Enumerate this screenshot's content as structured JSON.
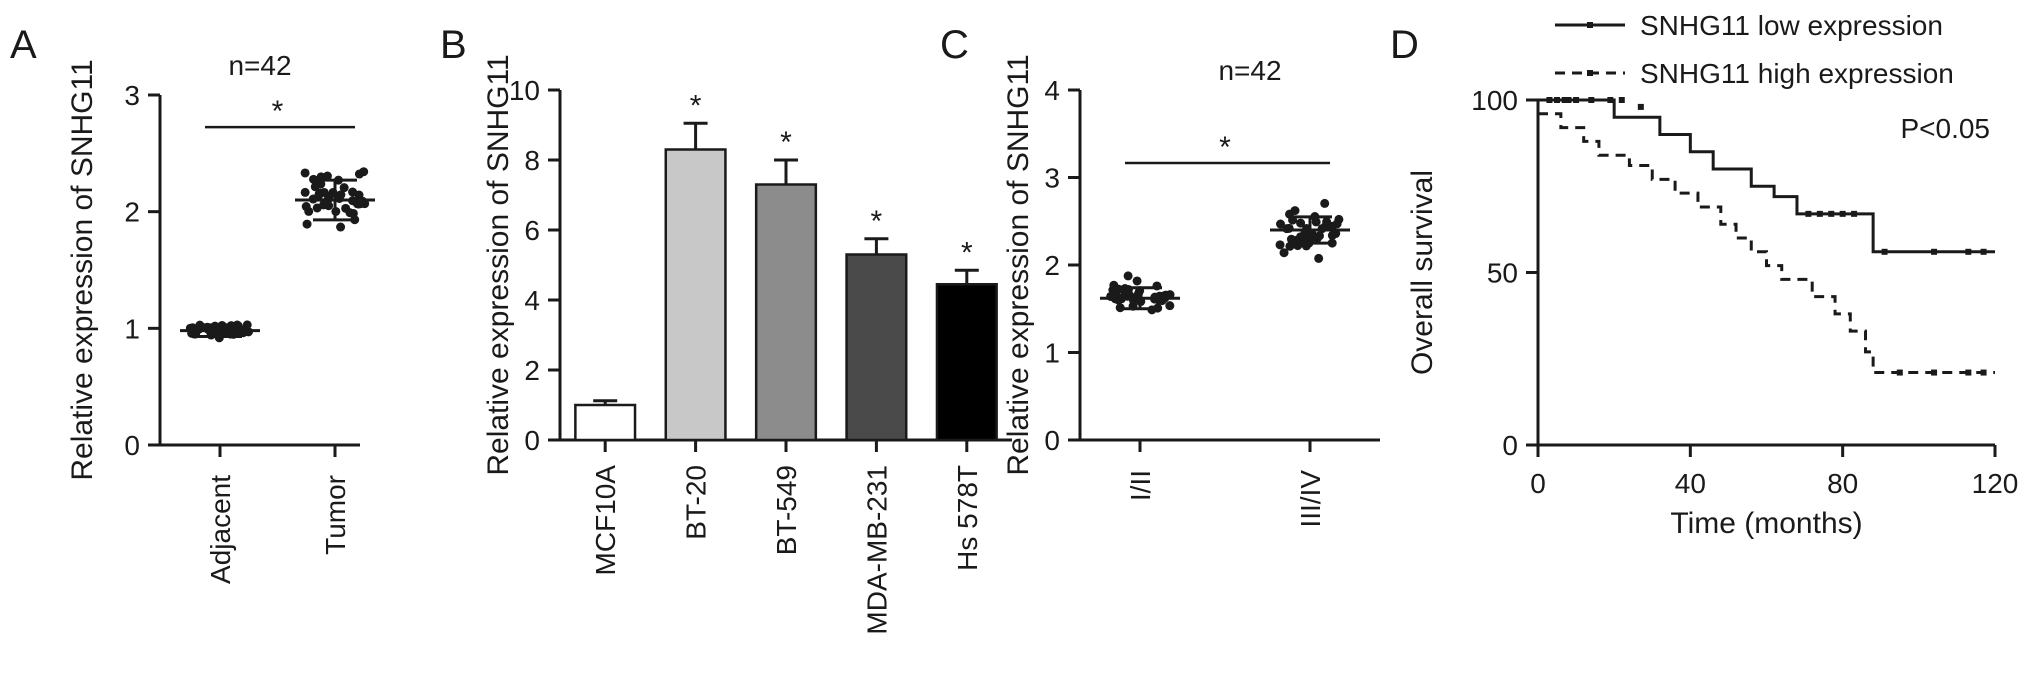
{
  "figure": {
    "panels": [
      {
        "letter": "A",
        "type": "scatter",
        "n_label": "n=42",
        "ylabel": "Relative expression of SNHG11",
        "ylim": [
          0,
          3
        ],
        "yticks": [
          0,
          1,
          2,
          3
        ],
        "categories": [
          "Adjacent",
          "Tumor"
        ],
        "significance": "*",
        "groups": [
          {
            "category": "Adjacent",
            "mean": 0.98,
            "sd": 0.05,
            "min": 0.9,
            "max": 1.07
          },
          {
            "category": "Tumor",
            "mean": 2.1,
            "sd": 0.17,
            "min": 1.75,
            "max": 2.45
          }
        ]
      },
      {
        "letter": "B",
        "type": "bar",
        "ylabel": "Relative expression of SNHG11",
        "ylim": [
          0,
          10
        ],
        "yticks": [
          0,
          2,
          4,
          6,
          8,
          10
        ],
        "categories": [
          "MCF10A",
          "BT-20",
          "BT-549",
          "MDA-MB-231",
          "Hs 578T"
        ],
        "values": [
          1.0,
          8.3,
          7.3,
          5.3,
          4.45
        ],
        "errors": [
          0.12,
          0.75,
          0.7,
          0.45,
          0.4
        ],
        "colors": [
          "#ffffff",
          "#c8c8c8",
          "#8c8c8c",
          "#4a4a4a",
          "#000000"
        ],
        "significance": [
          "",
          "*",
          "*",
          "*",
          "*"
        ]
      },
      {
        "letter": "C",
        "type": "scatter",
        "n_label": "n=42",
        "ylabel": "Relative expression of SNHG11",
        "ylim": [
          0,
          4
        ],
        "yticks": [
          0,
          1,
          2,
          3,
          4
        ],
        "categories": [
          "I/II",
          "III/IV"
        ],
        "significance": "*",
        "groups": [
          {
            "category": "I/II",
            "mean": 1.62,
            "sd": 0.12,
            "min": 1.4,
            "max": 1.95
          },
          {
            "category": "III/IV",
            "mean": 2.4,
            "sd": 0.15,
            "min": 2.0,
            "max": 2.8
          }
        ]
      },
      {
        "letter": "D",
        "type": "line",
        "ylabel": "Overall survival",
        "xlabel": "Time (months)",
        "ylim": [
          0,
          100
        ],
        "yticks": [
          0,
          50,
          100
        ],
        "xlim": [
          0,
          120
        ],
        "xticks": [
          0,
          40,
          80,
          120
        ],
        "p_label": "P<0.05",
        "series": [
          {
            "name": "SNHG11 low expression",
            "style": "solid",
            "steps": [
              [
                0,
                100
              ],
              [
                20,
                95
              ],
              [
                32,
                90
              ],
              [
                40,
                85
              ],
              [
                46,
                80
              ],
              [
                56,
                75
              ],
              [
                62,
                72
              ],
              [
                68,
                67
              ],
              [
                88,
                56
              ],
              [
                120,
                56
              ]
            ],
            "censors": [
              [
                5,
                100
              ],
              [
                8,
                100
              ],
              [
                14,
                100
              ],
              [
                71,
                67
              ],
              [
                74,
                67
              ],
              [
                77,
                67
              ],
              [
                80,
                67
              ],
              [
                83,
                67
              ],
              [
                91,
                56
              ],
              [
                104,
                56
              ],
              [
                113,
                56
              ],
              [
                117,
                56
              ]
            ]
          },
          {
            "name": "SNHG11 high expression",
            "style": "dashed",
            "steps": [
              [
                0,
                96
              ],
              [
                6,
                92
              ],
              [
                12,
                88
              ],
              [
                16,
                84
              ],
              [
                24,
                81
              ],
              [
                30,
                77
              ],
              [
                36,
                73
              ],
              [
                42,
                69
              ],
              [
                48,
                64
              ],
              [
                52,
                60
              ],
              [
                56,
                56
              ],
              [
                60,
                52
              ],
              [
                64,
                48
              ],
              [
                72,
                43
              ],
              [
                78,
                38
              ],
              [
                82,
                33
              ],
              [
                86,
                27
              ],
              [
                88,
                21
              ],
              [
                120,
                21
              ]
            ],
            "censors": [
              [
                3,
                100
              ],
              [
                7,
                100
              ],
              [
                10,
                100
              ],
              [
                19,
                100
              ],
              [
                22,
                100
              ],
              [
                27,
                98
              ],
              [
                95,
                21
              ],
              [
                104,
                21
              ],
              [
                113,
                21
              ],
              [
                117,
                21
              ]
            ]
          }
        ]
      }
    ]
  }
}
